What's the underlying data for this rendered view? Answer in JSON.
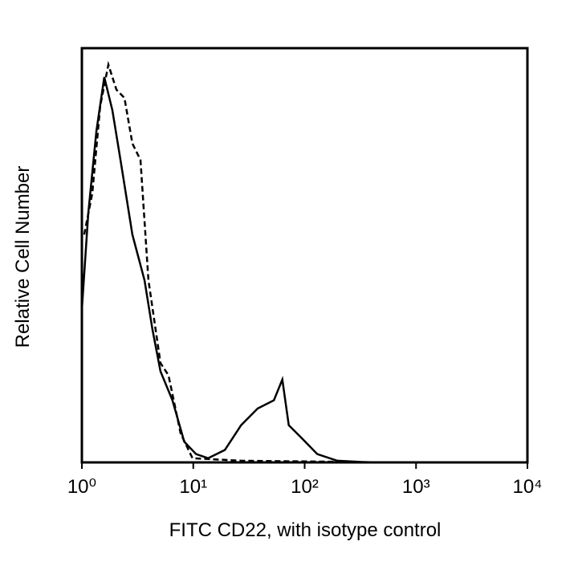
{
  "chart_data": {
    "type": "line",
    "xscale": "log",
    "xlabel": "FITC CD22, with isotype control",
    "ylabel": "Relative Cell Number",
    "xlim": [
      1,
      10000
    ],
    "xticks": [
      {
        "value": 1,
        "label": "10⁰"
      },
      {
        "value": 10,
        "label": "10¹"
      },
      {
        "value": 100,
        "label": "10²"
      },
      {
        "value": 1000,
        "label": "10³"
      },
      {
        "value": 10000,
        "label": "10⁴"
      }
    ],
    "ylim": [
      0,
      100
    ],
    "series": [
      {
        "color": "#000000",
        "linestyle": "solid",
        "x": [
          1,
          1.14,
          1.35,
          1.59,
          1.88,
          2.22,
          2.84,
          3.65,
          4.31,
          5.08,
          6.5,
          8.3,
          10.6,
          13.6,
          19.2,
          26.9,
          37.8,
          53,
          63,
          72,
          93,
          130,
          196,
          385
        ],
        "values": [
          37,
          60,
          80,
          93,
          85,
          73,
          55,
          44,
          32,
          22,
          15,
          5,
          2,
          1,
          3,
          9,
          13,
          15,
          20,
          9,
          6,
          2,
          0.4,
          0
        ]
      },
      {
        "color": "#000000",
        "linestyle": "dashed",
        "x": [
          1.05,
          1.24,
          1.46,
          1.73,
          2.04,
          2.41,
          2.84,
          3.36,
          3.96,
          5.08,
          5.99,
          7.7,
          9.85,
          26.9,
          140,
          623
        ],
        "values": [
          55,
          65,
          86,
          96,
          90,
          88,
          77,
          73,
          44,
          24,
          21,
          7,
          1,
          0.4,
          0.2,
          0
        ]
      }
    ]
  }
}
